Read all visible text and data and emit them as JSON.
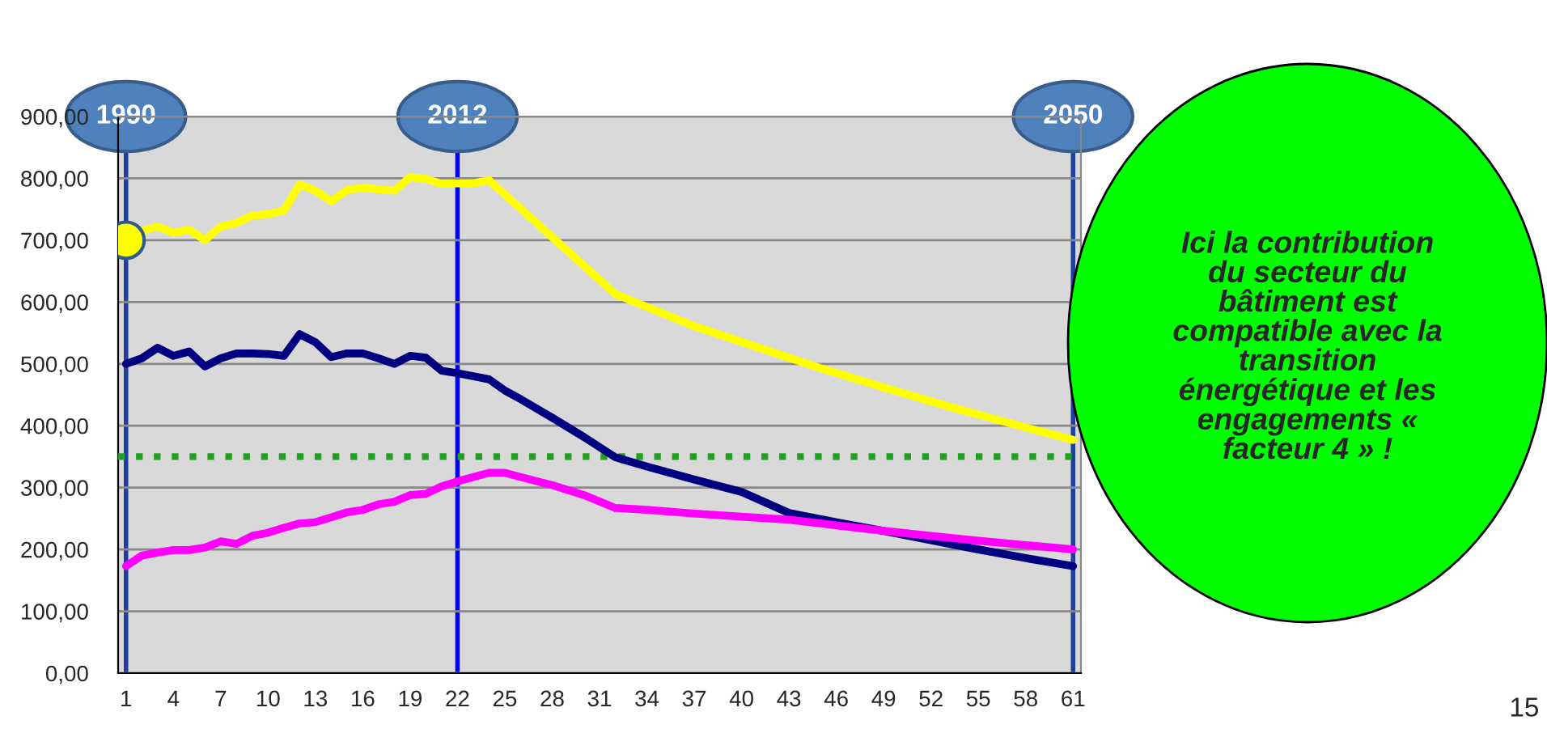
{
  "chart_data": {
    "type": "line",
    "series": [
      {
        "color": "#ffff00",
        "x": [
          1,
          2,
          3,
          4,
          5,
          6,
          7,
          8,
          9,
          10,
          11,
          12,
          13,
          14,
          15,
          16,
          17,
          18,
          19,
          20,
          21,
          22,
          23,
          24,
          32,
          37,
          41,
          45,
          49,
          53,
          57,
          61
        ],
        "values": [
          690,
          715,
          722,
          712,
          717,
          700,
          722,
          728,
          740,
          742,
          748,
          790,
          780,
          763,
          781,
          785,
          782,
          780,
          802,
          799,
          791,
          792,
          792,
          797,
          613,
          561,
          527,
          493,
          462,
          432,
          404,
          377
        ]
      },
      {
        "color": "#000080",
        "x": [
          1,
          2,
          3,
          4,
          5,
          6,
          7,
          8,
          9,
          10,
          11,
          12,
          13,
          14,
          15,
          16,
          17,
          18,
          19,
          20,
          21,
          22,
          23,
          24,
          25,
          26,
          28,
          30,
          32,
          34,
          37,
          40,
          43,
          46,
          49,
          52,
          55,
          58,
          61
        ],
        "values": [
          500,
          509,
          526,
          513,
          520,
          496,
          509,
          517,
          517,
          516,
          513,
          548,
          535,
          511,
          517,
          517,
          509,
          500,
          513,
          510,
          489,
          485,
          480,
          475,
          457,
          443,
          413,
          382,
          349,
          334,
          313,
          293,
          259,
          244,
          230,
          215,
          200,
          186,
          173
        ]
      },
      {
        "color": "#ff00ff",
        "x": [
          1,
          2,
          3,
          4,
          5,
          6,
          7,
          8,
          9,
          10,
          11,
          12,
          13,
          14,
          15,
          16,
          17,
          18,
          19,
          20,
          21,
          22,
          23,
          24,
          25,
          26,
          28,
          30,
          32,
          34,
          37,
          40,
          43,
          46,
          49,
          52,
          55,
          58,
          61
        ],
        "values": [
          173,
          190,
          195,
          199,
          199,
          203,
          213,
          209,
          222,
          227,
          235,
          242,
          244,
          252,
          260,
          264,
          273,
          277,
          288,
          290,
          302,
          310,
          317,
          324,
          324,
          317,
          304,
          288,
          267,
          264,
          258,
          253,
          248,
          239,
          230,
          222,
          214,
          207,
          200
        ]
      },
      {
        "type": "scatter",
        "color": "#ffff00",
        "marker": "circle",
        "x": [
          1
        ],
        "values": [
          700
        ]
      }
    ],
    "xlim": [
      0.5,
      61.5
    ],
    "xticks": [
      1,
      4,
      7,
      10,
      13,
      16,
      19,
      22,
      25,
      28,
      31,
      34,
      37,
      40,
      43,
      46,
      49,
      52,
      55,
      58,
      61
    ],
    "ylim": [
      0,
      900
    ],
    "yticks": [
      {
        "value": 0,
        "label": "0,00"
      },
      {
        "value": 100,
        "label": "100,00"
      },
      {
        "value": 200,
        "label": "200,00"
      },
      {
        "value": 300,
        "label": "300,00"
      },
      {
        "value": 400,
        "label": "400,00"
      },
      {
        "value": 500,
        "label": "500,00"
      },
      {
        "value": 600,
        "label": "600,00"
      },
      {
        "value": 700,
        "label": "700,00"
      },
      {
        "value": 800,
        "label": "800,00"
      },
      {
        "value": 900,
        "label": "900,00"
      }
    ],
    "grid": "y",
    "ref_lines": [
      {
        "axis": "y",
        "value": 350,
        "color": "#22a022",
        "line_style": "dotted"
      },
      {
        "axis": "x",
        "value": 1,
        "color": "#1f3fa0"
      },
      {
        "axis": "x",
        "value": 22,
        "color": "#0000ff"
      },
      {
        "axis": "x",
        "value": 61,
        "color": "#1f3fa0"
      }
    ],
    "annotations": [
      {
        "text": "1990",
        "x": 1,
        "y": 900
      },
      {
        "text": "2012",
        "x": 22,
        "y": 900
      },
      {
        "text": "2050",
        "x": 61,
        "y": 900
      },
      "Ici la contribution du secteur du bâtiment est compatible avec la transition énergétique et les engagements « facteur 4 » !",
      "15"
    ]
  }
}
